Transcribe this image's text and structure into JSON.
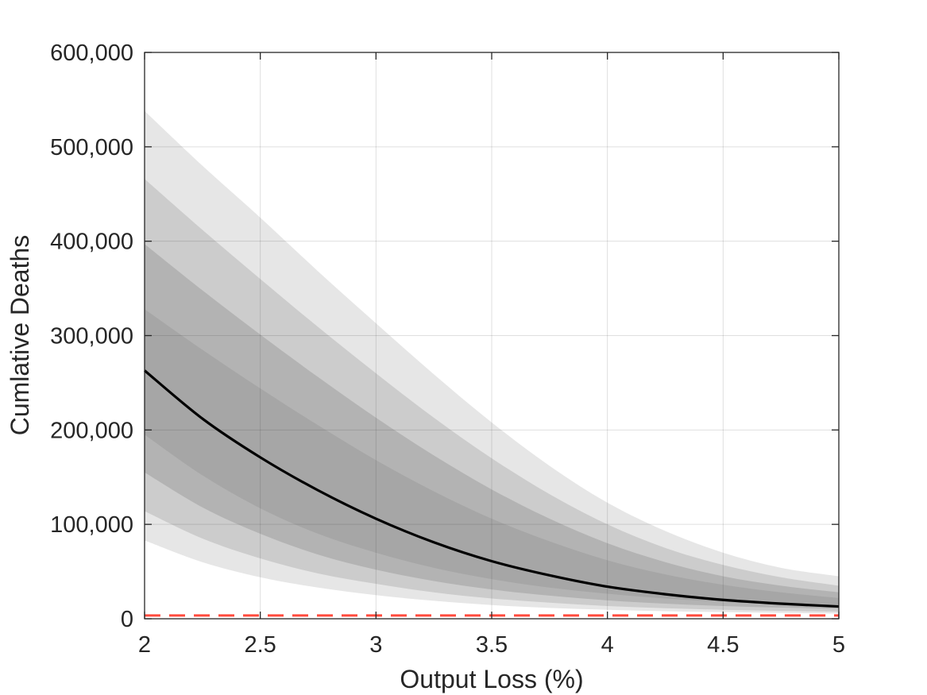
{
  "chart_data": {
    "type": "area",
    "title": "",
    "xlabel": "Output Loss (%)",
    "ylabel": "Cumlative Deaths",
    "xlim": [
      2,
      5
    ],
    "ylim": [
      0,
      600000
    ],
    "x_ticks": [
      2,
      2.5,
      3,
      3.5,
      4,
      4.5,
      5
    ],
    "x_tick_labels": [
      "2",
      "2.5",
      "3",
      "3.5",
      "4",
      "4.5",
      "5"
    ],
    "y_ticks": [
      0,
      100000,
      200000,
      300000,
      400000,
      500000,
      600000
    ],
    "y_tick_labels": [
      "0",
      "100,000",
      "200,000",
      "300,000",
      "400,000",
      "500,000",
      "600,000"
    ],
    "grid": true,
    "x": [
      2,
      2.25,
      2.5,
      2.75,
      3,
      3.25,
      3.5,
      3.75,
      4,
      4.25,
      4.5,
      4.75,
      5
    ],
    "bands": [
      {
        "color": "#e6e6e6",
        "lower": [
          83000,
          60000,
          44000,
          33000,
          25000,
          19000,
          14500,
          11500,
          9500,
          8000,
          7000,
          6200,
          5500
        ],
        "upper": [
          538000,
          480000,
          425000,
          368000,
          313000,
          259000,
          208000,
          162000,
          123000,
          93000,
          70000,
          54000,
          45000
        ]
      },
      {
        "color": "#cccccc",
        "lower": [
          114000,
          85000,
          64000,
          48000,
          37000,
          28000,
          21500,
          17000,
          13500,
          11200,
          9500,
          8300,
          7500
        ],
        "upper": [
          466000,
          412000,
          360000,
          309000,
          260000,
          213000,
          170000,
          132000,
          100000,
          75000,
          57000,
          44000,
          35000
        ]
      },
      {
        "color": "#b3b3b3",
        "lower": [
          155000,
          118000,
          90000,
          68000,
          52000,
          40000,
          31000,
          24500,
          19500,
          16000,
          13500,
          11800,
          10500
        ],
        "upper": [
          397000,
          348000,
          301000,
          256000,
          213000,
          173000,
          137000,
          106000,
          80000,
          60000,
          45000,
          35000,
          28000
        ]
      },
      {
        "color": "#a6a6a6",
        "lower": [
          195000,
          152000,
          117000,
          90000,
          70000,
          54000,
          42000,
          33000,
          26500,
          21500,
          18000,
          15500,
          13500
        ],
        "upper": [
          328000,
          285000,
          244000,
          205000,
          168000,
          135000,
          106000,
          82000,
          62000,
          47000,
          36000,
          28000,
          22000
        ]
      }
    ],
    "series": [
      {
        "type": "line",
        "color": "#000000",
        "style": "solid",
        "values": [
          263000,
          212000,
          171000,
          136000,
          106000,
          81000,
          61000,
          46000,
          34000,
          26000,
          20000,
          16000,
          13000
        ]
      },
      {
        "type": "line",
        "color": "#ff4a3d",
        "style": "dashed",
        "values": [
          3500,
          3500,
          3500,
          3500,
          3500,
          3500,
          3500,
          3500,
          3500,
          3500,
          3500,
          3500,
          3500
        ]
      }
    ]
  }
}
